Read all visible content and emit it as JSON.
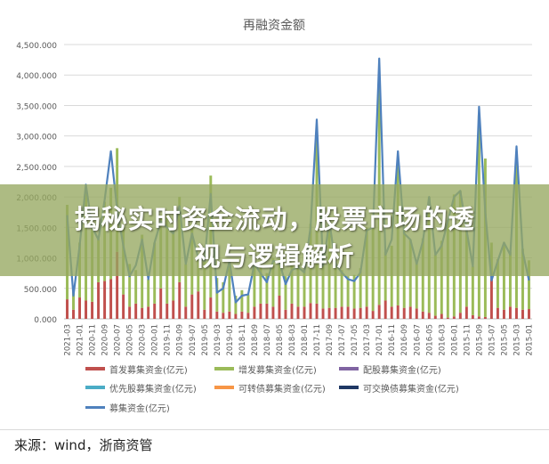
{
  "banner": {
    "line1": "揭秘实时资金流动，股票市场的透",
    "line2": "视与逻辑解析"
  },
  "source_text": "来源：wind，浙商资管",
  "colors": {
    "首发": "#c0504d",
    "增发": "#9bbb59",
    "配股": "#8064a2",
    "优先股": "#4bacc6",
    "可转债": "#f79646",
    "可交换债": "#1f3864",
    "募集资金": "#4f81bd"
  },
  "chart_data": {
    "type": "bar",
    "title": "再融资金额",
    "xlabel": "",
    "ylabel": "",
    "ylim": [
      0,
      4500
    ],
    "yticks": [
      "0.000",
      "500.000",
      "1,000.000",
      "1,500.000",
      "2,000.000",
      "2,500.000",
      "3,000.000",
      "3,500.000",
      "4,000.000",
      "4,500.000"
    ],
    "grid": true,
    "legend_position": "bottom",
    "x_tick_labels": [
      "2021-03",
      "2021-01",
      "2020-11",
      "2020-09",
      "2020-07",
      "2020-05",
      "2020-03",
      "2020-01",
      "2019-11",
      "2019-09",
      "2019-07",
      "2019-05",
      "2019-03",
      "2019-01",
      "2018-11",
      "2018-09",
      "2018-07",
      "2018-05",
      "2018-03",
      "2018-01",
      "2017-11",
      "2017-09",
      "2017-07",
      "2017-05",
      "2017-03",
      "2017-01",
      "2016-11",
      "2016-09",
      "2016-07",
      "2016-05",
      "2016-03",
      "2016-01",
      "2015-11",
      "2015-09",
      "2015-07",
      "2015-05",
      "2015-03",
      "2015-01"
    ],
    "categories": [
      "2021-03",
      "2021-02",
      "2021-01",
      "2020-12",
      "2020-11",
      "2020-10",
      "2020-09",
      "2020-08",
      "2020-07",
      "2020-06",
      "2020-05",
      "2020-04",
      "2020-03",
      "2020-02",
      "2020-01",
      "2019-12",
      "2019-11",
      "2019-10",
      "2019-09",
      "2019-08",
      "2019-07",
      "2019-06",
      "2019-05",
      "2019-04",
      "2019-03",
      "2019-02",
      "2019-01",
      "2018-12",
      "2018-11",
      "2018-10",
      "2018-09",
      "2018-08",
      "2018-07",
      "2018-06",
      "2018-05",
      "2018-04",
      "2018-03",
      "2018-02",
      "2018-01",
      "2017-12",
      "2017-11",
      "2017-10",
      "2017-09",
      "2017-08",
      "2017-07",
      "2017-06",
      "2017-05",
      "2017-04",
      "2017-03",
      "2017-02",
      "2017-01",
      "2016-12",
      "2016-11",
      "2016-10",
      "2016-09",
      "2016-08",
      "2016-07",
      "2016-06",
      "2016-05",
      "2016-04",
      "2016-03",
      "2016-02",
      "2016-01",
      "2015-12",
      "2015-11",
      "2015-10",
      "2015-09",
      "2015-08",
      "2015-07",
      "2015-06",
      "2015-05",
      "2015-04",
      "2015-03",
      "2015-02",
      "2015-01"
    ],
    "series": [
      {
        "name": "首发募集资金(亿元)",
        "kind": "bar",
        "values": [
          320,
          150,
          350,
          300,
          280,
          600,
          620,
          650,
          1100,
          400,
          200,
          250,
          180,
          200,
          250,
          500,
          250,
          300,
          600,
          200,
          400,
          450,
          150,
          350,
          120,
          100,
          120,
          80,
          120,
          100,
          200,
          250,
          250,
          200,
          380,
          150,
          250,
          200,
          200,
          260,
          250,
          170,
          180,
          180,
          200,
          200,
          170,
          180,
          200,
          130,
          230,
          300,
          200,
          220,
          180,
          200,
          170,
          120,
          100,
          50,
          80,
          20,
          40,
          100,
          200,
          60,
          40,
          30,
          650,
          180,
          150,
          200,
          180,
          150,
          160
        ]
      },
      {
        "name": "增发募集资金(亿元)",
        "kind": "bar",
        "values": [
          1550,
          300,
          900,
          1800,
          1200,
          700,
          1300,
          1500,
          1700,
          1100,
          700,
          550,
          1200,
          450,
          1000,
          1200,
          1450,
          1200,
          1400,
          700,
          1150,
          600,
          800,
          2000,
          550,
          500,
          800,
          300,
          350,
          300,
          700,
          650,
          500,
          800,
          600,
          550,
          650,
          700,
          600,
          1300,
          2900,
          800,
          1500,
          800,
          600,
          500,
          550,
          650,
          1300,
          1400,
          3600,
          800,
          1000,
          2400,
          1300,
          1100,
          800,
          1200,
          1900,
          1000,
          1200,
          1600,
          2000,
          2000,
          1350,
          800,
          3300,
          2600,
          600,
          800,
          1100,
          900,
          2400,
          1000,
          800
        ]
      },
      {
        "name": "配股募集资金(亿元)",
        "kind": "bar",
        "values": [
          0,
          0,
          0,
          0,
          0,
          0,
          0,
          0,
          0,
          0,
          0,
          0,
          0,
          0,
          0,
          0,
          0,
          0,
          0,
          0,
          0,
          0,
          0,
          0,
          0,
          0,
          0,
          0,
          0,
          0,
          0,
          0,
          0,
          0,
          0,
          0,
          0,
          0,
          0,
          0,
          0,
          0,
          0,
          0,
          0,
          0,
          0,
          0,
          0,
          0,
          0,
          0,
          0,
          0,
          0,
          0,
          0,
          0,
          0,
          0,
          0,
          0,
          0,
          0,
          0,
          0,
          0,
          0,
          0,
          0,
          0,
          0,
          0,
          0,
          0
        ]
      },
      {
        "name": "优先股募集资金(亿元)",
        "kind": "bar",
        "values": [
          0,
          0,
          0,
          0,
          0,
          0,
          0,
          0,
          0,
          0,
          0,
          0,
          0,
          0,
          0,
          0,
          0,
          0,
          0,
          0,
          0,
          0,
          0,
          0,
          0,
          0,
          0,
          0,
          0,
          0,
          0,
          0,
          0,
          0,
          0,
          0,
          0,
          0,
          0,
          0,
          0,
          0,
          0,
          0,
          0,
          0,
          0,
          0,
          0,
          0,
          0,
          0,
          0,
          0,
          0,
          0,
          0,
          0,
          0,
          0,
          0,
          0,
          0,
          0,
          0,
          0,
          0,
          0,
          0,
          0,
          0,
          0,
          0,
          0,
          0
        ]
      },
      {
        "name": "可转债募集资金(亿元)",
        "kind": "bar",
        "values": [
          0,
          0,
          0,
          0,
          0,
          0,
          0,
          0,
          0,
          0,
          0,
          0,
          0,
          0,
          0,
          0,
          0,
          0,
          0,
          0,
          0,
          0,
          0,
          0,
          0,
          0,
          0,
          0,
          0,
          0,
          0,
          0,
          0,
          0,
          0,
          0,
          0,
          0,
          0,
          0,
          0,
          0,
          0,
          0,
          0,
          0,
          0,
          0,
          0,
          0,
          0,
          0,
          0,
          0,
          0,
          0,
          0,
          0,
          0,
          0,
          0,
          0,
          0,
          0,
          0,
          0,
          0,
          0,
          0,
          0,
          0,
          0,
          0,
          0,
          0
        ]
      },
      {
        "name": "可交换债募集资金(亿元)",
        "kind": "bar",
        "values": [
          0,
          0,
          0,
          0,
          0,
          0,
          0,
          0,
          0,
          0,
          0,
          0,
          0,
          0,
          0,
          0,
          0,
          0,
          0,
          0,
          0,
          0,
          0,
          0,
          0,
          0,
          0,
          0,
          0,
          0,
          0,
          0,
          0,
          0,
          0,
          0,
          0,
          0,
          0,
          0,
          0,
          0,
          0,
          0,
          0,
          0,
          0,
          0,
          0,
          0,
          0,
          0,
          0,
          0,
          0,
          0,
          0,
          0,
          0,
          0,
          0,
          0,
          0,
          0,
          0,
          0,
          0,
          0,
          0,
          0,
          0,
          0,
          0,
          0,
          0
        ]
      },
      {
        "name": "募集资金(亿元)",
        "kind": "line",
        "values": [
          1700,
          380,
          1200,
          2200,
          1500,
          1300,
          1950,
          2750,
          1800,
          1200,
          700,
          880,
          1300,
          650,
          1250,
          1600,
          1500,
          1400,
          1850,
          900,
          1400,
          1000,
          950,
          2050,
          430,
          500,
          950,
          270,
          380,
          400,
          900,
          750,
          600,
          950,
          930,
          570,
          800,
          850,
          760,
          1500,
          3270,
          870,
          1600,
          900,
          760,
          650,
          620,
          760,
          1450,
          1500,
          4270,
          1050,
          1300,
          2750,
          1400,
          1300,
          900,
          1280,
          2000,
          1050,
          1200,
          1600,
          2000,
          2100,
          1450,
          860,
          3480,
          1750,
          630,
          950,
          1250,
          1050,
          2830,
          1100,
          630
        ]
      }
    ]
  }
}
